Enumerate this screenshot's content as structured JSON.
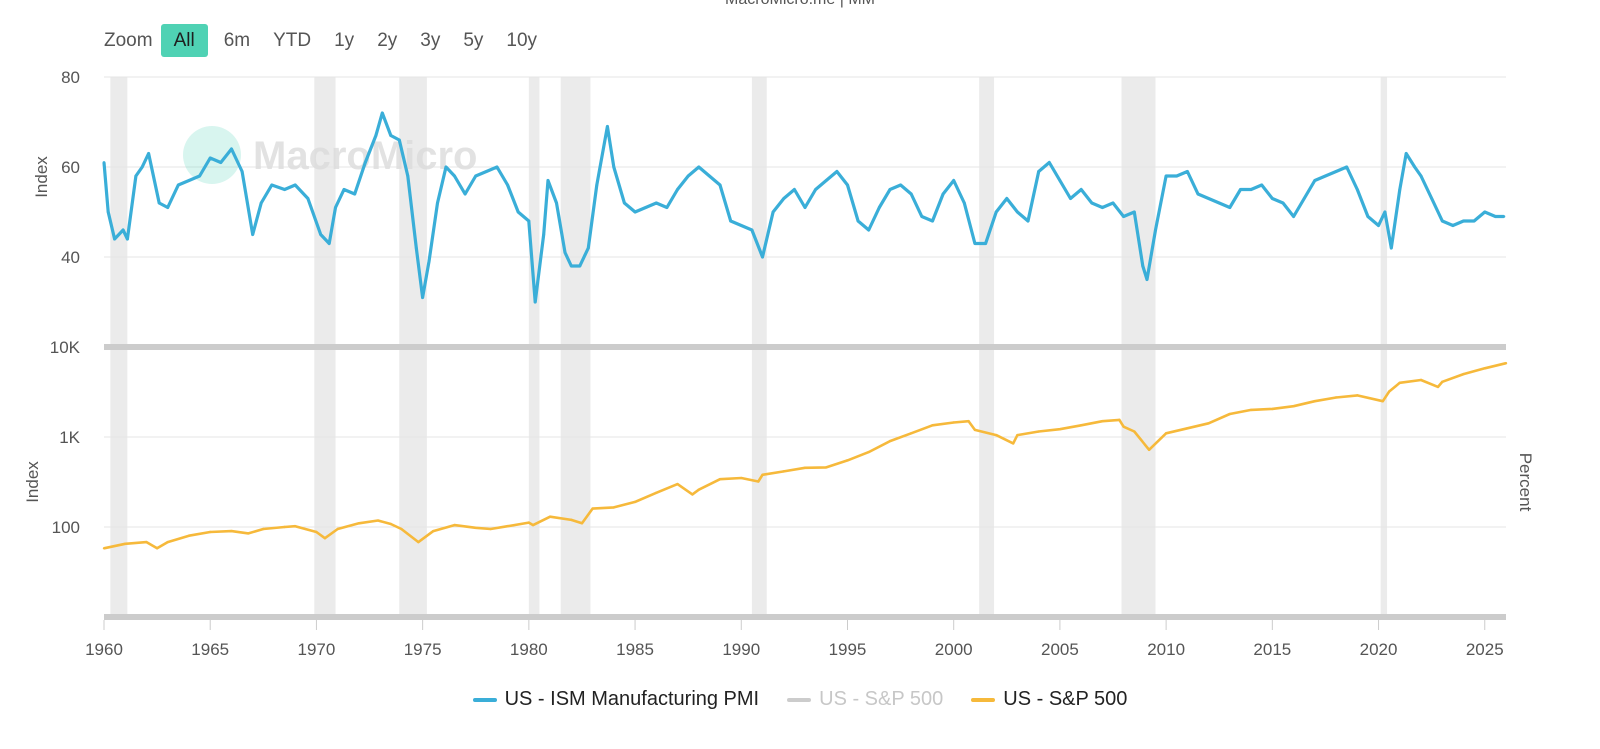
{
  "page": {
    "title": "MacroMicro.me | MM"
  },
  "zoom": {
    "label": "Zoom",
    "buttons": [
      "All",
      "6m",
      "YTD",
      "1y",
      "2y",
      "3y",
      "5y",
      "10y"
    ],
    "active": "All"
  },
  "watermark": "MacroMicro",
  "colors": {
    "pmi": "#3aaed8",
    "sp500": "#f6b93b",
    "hidden": "#cccccc",
    "recession": "#ebebeb",
    "grid": "#e6e6e6",
    "divider": "#cccccc",
    "accent": "#4fd2b4"
  },
  "legend": [
    {
      "label": "US - ISM Manufacturing PMI",
      "color": "#3aaed8",
      "visible": true
    },
    {
      "label": "US - S&P 500",
      "color": "#cccccc",
      "visible": false
    },
    {
      "label": "US - S&P 500",
      "color": "#f6b93b",
      "visible": true
    }
  ],
  "chart_data": [
    {
      "type": "line",
      "title": "US - ISM Manufacturing PMI",
      "ylabel": "Index",
      "ylim": [
        20,
        80
      ],
      "yticks": [
        40,
        60,
        80
      ],
      "ytick_labels": [
        "40",
        "60",
        "80"
      ],
      "grid": true,
      "series": [
        {
          "name": "US - ISM Manufacturing PMI",
          "x": [
            1960.0,
            1960.2,
            1960.5,
            1960.9,
            1961.1,
            1961.5,
            1961.8,
            1962.1,
            1962.6,
            1963.0,
            1963.5,
            1964.0,
            1964.5,
            1965.0,
            1965.5,
            1966.0,
            1966.5,
            1967.0,
            1967.4,
            1967.9,
            1968.5,
            1969.0,
            1969.6,
            1970.2,
            1970.6,
            1970.9,
            1971.3,
            1971.8,
            1972.3,
            1972.8,
            1973.1,
            1973.5,
            1973.9,
            1974.3,
            1974.7,
            1975.0,
            1975.3,
            1975.7,
            1976.1,
            1976.5,
            1977.0,
            1977.5,
            1978.0,
            1978.5,
            1979.0,
            1979.5,
            1980.0,
            1980.3,
            1980.7,
            1980.9,
            1981.3,
            1981.7,
            1982.0,
            1982.4,
            1982.8,
            1983.2,
            1983.7,
            1984.0,
            1984.5,
            1985.0,
            1985.5,
            1986.0,
            1986.5,
            1987.0,
            1987.5,
            1988.0,
            1988.5,
            1989.0,
            1989.5,
            1990.0,
            1990.5,
            1991.0,
            1991.5,
            1992.0,
            1992.5,
            1993.0,
            1993.5,
            1994.0,
            1994.5,
            1995.0,
            1995.5,
            1996.0,
            1996.5,
            1997.0,
            1997.5,
            1998.0,
            1998.5,
            1999.0,
            1999.5,
            2000.0,
            2000.5,
            2001.0,
            2001.5,
            2002.0,
            2002.5,
            2003.0,
            2003.5,
            2004.0,
            2004.5,
            2005.0,
            2005.5,
            2006.0,
            2006.5,
            2007.0,
            2007.5,
            2008.0,
            2008.5,
            2008.9,
            2009.1,
            2009.5,
            2010.0,
            2010.5,
            2011.0,
            2011.5,
            2012.0,
            2012.5,
            2013.0,
            2013.5,
            2014.0,
            2014.5,
            2015.0,
            2015.5,
            2016.0,
            2016.5,
            2017.0,
            2017.5,
            2018.0,
            2018.5,
            2019.0,
            2019.5,
            2020.0,
            2020.3,
            2020.6,
            2021.0,
            2021.3,
            2021.7,
            2022.0,
            2022.5,
            2023.0,
            2023.5,
            2024.0,
            2024.5,
            2025.0,
            2025.5,
            2025.9
          ],
          "values": [
            61,
            50,
            44,
            46,
            44,
            58,
            60,
            63,
            52,
            51,
            56,
            57,
            58,
            62,
            61,
            64,
            59,
            45,
            52,
            56,
            55,
            56,
            53,
            45,
            43,
            51,
            55,
            54,
            61,
            67,
            72,
            67,
            66,
            58,
            42,
            31,
            39,
            52,
            60,
            58,
            54,
            58,
            59,
            60,
            56,
            50,
            48,
            30,
            45,
            57,
            52,
            41,
            38,
            38,
            42,
            56,
            69,
            60,
            52,
            50,
            51,
            52,
            51,
            55,
            58,
            60,
            58,
            56,
            48,
            47,
            46,
            40,
            50,
            53,
            55,
            51,
            55,
            57,
            59,
            56,
            48,
            46,
            51,
            55,
            56,
            54,
            49,
            48,
            54,
            57,
            52,
            43,
            43,
            50,
            53,
            50,
            48,
            59,
            61,
            57,
            53,
            55,
            52,
            51,
            52,
            49,
            50,
            38,
            35,
            46,
            58,
            58,
            59,
            54,
            53,
            52,
            51,
            55,
            55,
            56,
            53,
            52,
            49,
            53,
            57,
            58,
            59,
            60,
            55,
            49,
            47,
            50,
            42,
            55,
            63,
            60,
            58,
            53,
            48,
            47,
            48,
            48,
            50,
            49,
            49
          ]
        }
      ]
    },
    {
      "type": "line",
      "title": "US - S&P 500",
      "ylabel": "Index",
      "y2label": "Percent",
      "yscale": "log",
      "ylim": [
        10,
        10000
      ],
      "yticks": [
        100,
        1000,
        10000
      ],
      "ytick_labels": [
        "100",
        "1K",
        "10K"
      ],
      "xlim": [
        1960,
        2026
      ],
      "xticks": [
        1960,
        1965,
        1970,
        1975,
        1980,
        1985,
        1990,
        1995,
        2000,
        2005,
        2010,
        2015,
        2020,
        2025
      ],
      "xtick_labels": [
        "1960",
        "1965",
        "1970",
        "1975",
        "1980",
        "1985",
        "1990",
        "1995",
        "2000",
        "2005",
        "2010",
        "2015",
        "2020",
        "2025"
      ],
      "series": [
        {
          "name": "US - S&P 500",
          "x": [
            1960,
            1961,
            1962,
            1962.5,
            1963,
            1964,
            1965,
            1966,
            1966.8,
            1967.5,
            1968.5,
            1969,
            1970,
            1970.4,
            1971,
            1972,
            1972.9,
            1973.5,
            1974,
            1974.8,
            1975.5,
            1976.5,
            1977.5,
            1978.2,
            1979,
            1980,
            1980.2,
            1981,
            1982,
            1982.5,
            1983,
            1984,
            1985,
            1986,
            1987,
            1987.7,
            1988,
            1989,
            1990,
            1990.8,
            1991,
            1992,
            1993,
            1994,
            1995,
            1996,
            1997,
            1998,
            1999,
            2000,
            2000.7,
            2001,
            2002,
            2002.8,
            2003,
            2004,
            2005,
            2006,
            2007,
            2007.8,
            2008,
            2008.5,
            2009.2,
            2010,
            2011,
            2012,
            2013,
            2014,
            2015,
            2016,
            2017,
            2018,
            2019,
            2020.2,
            2020.5,
            2021,
            2022,
            2022.8,
            2023,
            2024,
            2025,
            2026
          ],
          "values": [
            58,
            65,
            68,
            58,
            68,
            80,
            88,
            90,
            85,
            95,
            100,
            102,
            88,
            75,
            95,
            110,
            118,
            108,
            95,
            68,
            90,
            105,
            98,
            95,
            102,
            112,
            105,
            130,
            120,
            110,
            160,
            165,
            190,
            240,
            300,
            230,
            260,
            340,
            350,
            320,
            380,
            415,
            455,
            460,
            550,
            680,
            900,
            1100,
            1350,
            1450,
            1500,
            1200,
            1050,
            850,
            1050,
            1150,
            1220,
            1350,
            1500,
            1550,
            1300,
            1150,
            720,
            1100,
            1250,
            1420,
            1800,
            2000,
            2050,
            2200,
            2500,
            2750,
            2900,
            2500,
            3200,
            4000,
            4300,
            3600,
            4100,
            5000,
            5800,
            6600
          ]
        }
      ]
    }
  ],
  "recessions": [
    [
      1960.3,
      1961.1
    ],
    [
      1969.9,
      1970.9
    ],
    [
      1973.9,
      1975.2
    ],
    [
      1980.0,
      1980.5
    ],
    [
      1981.5,
      1982.9
    ],
    [
      1990.5,
      1991.2
    ],
    [
      2001.2,
      2001.9
    ],
    [
      2007.9,
      2009.5
    ],
    [
      2020.1,
      2020.4
    ]
  ]
}
